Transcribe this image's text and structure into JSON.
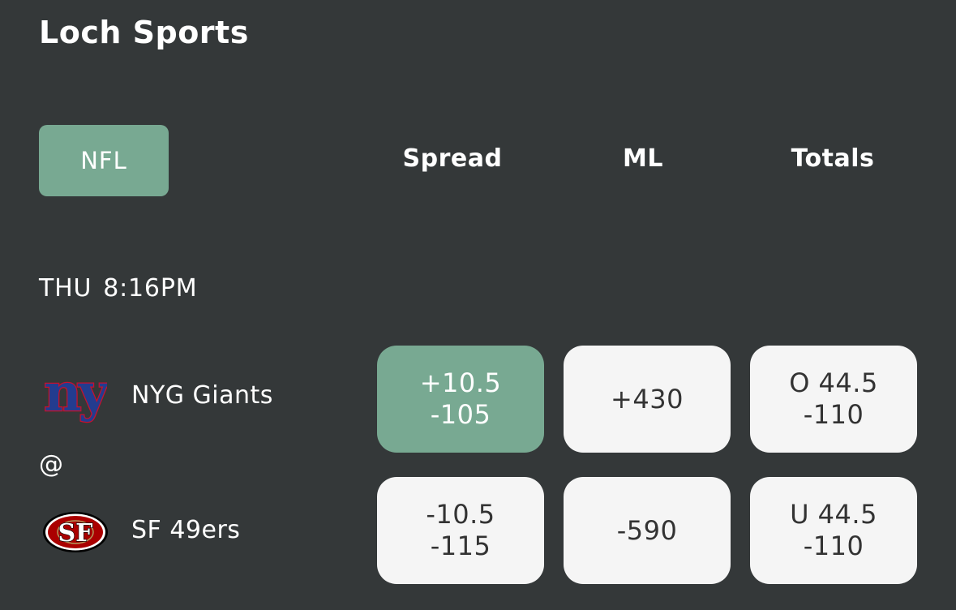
{
  "app": {
    "title": "Loch Sports"
  },
  "league": {
    "label": "NFL"
  },
  "columns": {
    "spread": "Spread",
    "ml": "ML",
    "totals": "Totals"
  },
  "game": {
    "day": "THU",
    "time": "8:16PM",
    "separator": "@",
    "away": {
      "name": "NYG Giants",
      "logo_text": "ny",
      "spread_line": "+10.5",
      "spread_price": "-105",
      "ml": "+430",
      "total_line": "O 44.5",
      "total_price": "-110"
    },
    "home": {
      "name": "SF 49ers",
      "logo_text": "SF",
      "spread_line": "-10.5",
      "spread_price": "-115",
      "ml": "-590",
      "total_line": "U 44.5",
      "total_price": "-110"
    }
  },
  "colors": {
    "background": "#343839",
    "accent": "#78a992",
    "button": "#f5f5f5",
    "button_text": "#333333",
    "giants_blue": "#233c8f",
    "giants_red": "#c8102e",
    "niners_red": "#aa0000",
    "niners_gold": "#b3995d"
  }
}
